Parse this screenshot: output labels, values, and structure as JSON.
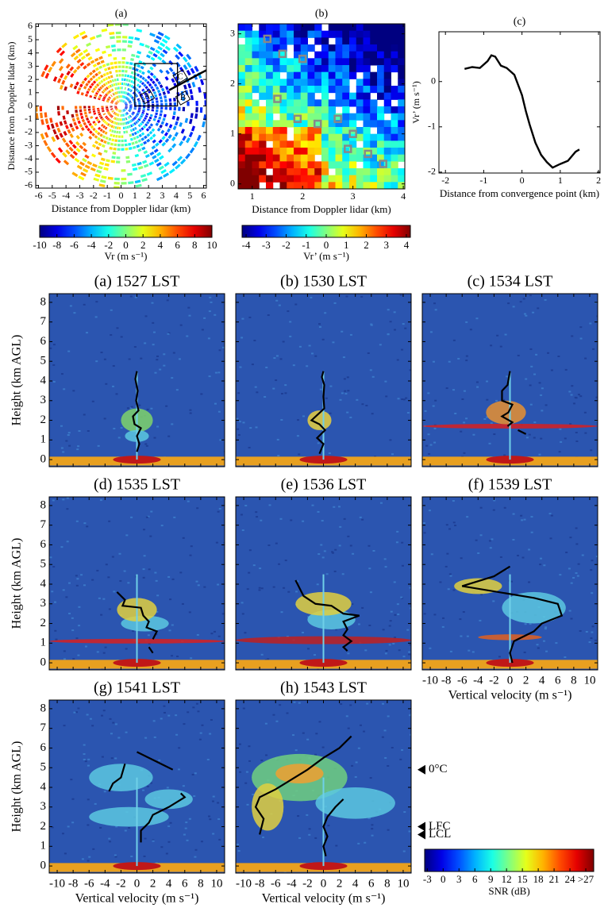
{
  "chart_data": [
    {
      "type": "image",
      "title": "(a)",
      "xlabel": "Distance from Doppler lidar (km)",
      "ylabel": "Distance from Doppler lidar (km)",
      "xlim": [
        -6.2,
        6.2
      ],
      "ylim": [
        -6.2,
        6.2
      ],
      "xticks": [
        -6,
        -5,
        -4,
        -3,
        -2,
        -1,
        0,
        1,
        2,
        3,
        4,
        5,
        6
      ],
      "yticks": [
        -6,
        -5,
        -4,
        -3,
        -2,
        -1,
        0,
        1,
        2,
        3,
        4,
        5,
        6
      ],
      "annotations": [
        "A",
        "B",
        "C"
      ],
      "colorbar": {
        "label": "Vr (m s⁻¹)",
        "lim": [
          -10,
          10
        ],
        "ticks": [
          -10,
          -8,
          -6,
          -4,
          -2,
          0,
          2,
          4,
          6,
          8,
          10
        ]
      }
    },
    {
      "type": "image",
      "title": "(b)",
      "xlabel": "Distance from Doppler lidar (km)",
      "xlim": [
        0.72,
        4.03
      ],
      "ylim": [
        -0.1,
        3.2
      ],
      "xticks": [
        1,
        2,
        3,
        4
      ],
      "yticks": [
        0,
        1,
        2,
        3
      ],
      "colorbar": {
        "label": "Vr’ (m s⁻¹)",
        "lim": [
          -4.2,
          4.2
        ],
        "ticks": [
          -4,
          -3,
          -2,
          -1,
          0,
          1,
          2,
          3,
          4
        ]
      }
    },
    {
      "type": "line",
      "title": "(c)",
      "xlabel": "Distance from convergence point (km)",
      "ylabel": "Vr’ (m s⁻¹)",
      "xlim": [
        -2.17,
        2.04
      ],
      "ylim": [
        -2.02,
        1.1
      ],
      "xticks": [
        -2,
        -1,
        0,
        1,
        2
      ],
      "yticks": [
        -2,
        -1,
        0
      ],
      "color": "#000000",
      "x": [
        -1.5,
        -1.3,
        -1.1,
        -0.9,
        -0.8,
        -0.7,
        -0.55,
        -0.4,
        -0.2,
        0,
        0.1,
        0.2,
        0.35,
        0.5,
        0.65,
        0.8,
        1.0,
        1.2,
        1.4,
        1.5
      ],
      "values": [
        0.28,
        0.32,
        0.3,
        0.45,
        0.58,
        0.55,
        0.35,
        0.3,
        0.15,
        -0.3,
        -0.65,
        -0.95,
        -1.35,
        -1.62,
        -1.78,
        -1.9,
        -1.82,
        -1.75,
        -1.55,
        -1.5
      ]
    },
    {
      "type": "heatmap",
      "title": "(a) 1527 LST",
      "ylabel": "Height (km AGL)",
      "xlim": [
        -11,
        11
      ],
      "ylim": [
        -0.36,
        8.44
      ],
      "xticks": [
        -10,
        -8,
        -6,
        -4,
        -2,
        0,
        2,
        4,
        6,
        8,
        10
      ],
      "yticks": [
        0,
        1,
        2,
        3,
        4,
        5,
        6,
        7,
        8
      ],
      "profile_x": [
        0,
        -0.2,
        0.1,
        -0.1,
        0.2,
        -0.5,
        -0.3,
        0.5,
        0,
        0.3,
        0
      ],
      "profile_y": [
        4.5,
        4.1,
        3.5,
        3.0,
        2.5,
        2.2,
        1.8,
        1.6,
        1.2,
        0.8,
        0.4
      ]
    },
    {
      "type": "heatmap",
      "title": "(b) 1530 LST",
      "xlim": [
        -11,
        11
      ],
      "ylim": [
        -0.36,
        8.44
      ],
      "xticks": [
        -10,
        -8,
        -6,
        -4,
        -2,
        0,
        2,
        4,
        6,
        8,
        10
      ],
      "yticks": [
        0,
        1,
        2,
        3,
        4,
        5,
        6,
        7,
        8
      ],
      "profile_x": [
        0,
        -0.2,
        0.1,
        0,
        0.1,
        -1.5,
        -0.5,
        0.2,
        -0.8,
        0,
        -0.5
      ],
      "profile_y": [
        4.5,
        4.2,
        3.8,
        3.2,
        2.6,
        2.0,
        1.8,
        1.5,
        1.1,
        0.8,
        0.3
      ]
    },
    {
      "type": "heatmap",
      "title": "(c) 1534 LST",
      "xlim": [
        -11,
        11
      ],
      "ylim": [
        -0.36,
        8.44
      ],
      "xticks": [
        -10,
        -8,
        -6,
        -4,
        -2,
        0,
        2,
        4,
        6,
        8,
        10
      ],
      "yticks": [
        0,
        1,
        2,
        3,
        4,
        5,
        6,
        7,
        8
      ],
      "profile_x": [
        0,
        -0.3,
        -1,
        -1,
        0.3,
        -0.2,
        -1,
        0.3,
        -0.3,
        null,
        1,
        2
      ],
      "profile_y": [
        4.5,
        3.8,
        3.5,
        3.0,
        2.8,
        2.4,
        2.2,
        1.9,
        1.7,
        null,
        1.5,
        1.3
      ]
    },
    {
      "type": "heatmap",
      "title": "(d) 1535 LST",
      "ylabel": "Height (km AGL)",
      "xlim": [
        -11,
        11
      ],
      "ylim": [
        -0.36,
        8.44
      ],
      "xticks": [
        -10,
        -8,
        -6,
        -4,
        -2,
        0,
        2,
        4,
        6,
        8,
        10
      ],
      "yticks": [
        0,
        1,
        2,
        3,
        4,
        5,
        6,
        7,
        8
      ],
      "profile_x": [
        -2.5,
        -1.5,
        -1.8,
        0.5,
        0.8,
        1.5,
        1.2,
        2.5,
        2,
        null,
        1.5,
        2
      ],
      "profile_y": [
        3.6,
        3.2,
        2.9,
        2.8,
        2.4,
        2.1,
        1.8,
        1.6,
        1.2,
        null,
        0.8,
        0.5
      ]
    },
    {
      "type": "heatmap",
      "title": "(e) 1536 LST",
      "xlim": [
        -11,
        11
      ],
      "ylim": [
        -0.36,
        8.44
      ],
      "xticks": [
        -10,
        -8,
        -6,
        -4,
        -2,
        0,
        2,
        4,
        6,
        8,
        10
      ],
      "yticks": [
        0,
        1,
        2,
        3,
        4,
        5,
        6,
        7,
        8
      ],
      "profile_x": [
        -3.5,
        -2.5,
        -1,
        1,
        2.5,
        4.5,
        2.5,
        3,
        2.5,
        3.5,
        2.5,
        3
      ],
      "profile_y": [
        4.2,
        3.4,
        3.0,
        2.9,
        2.5,
        2.4,
        2.1,
        1.7,
        1.4,
        1.1,
        0.8,
        0.6
      ]
    },
    {
      "type": "heatmap",
      "title": "(f) 1539 LST",
      "xlabel": "Vertical velocity (m s⁻¹)",
      "xlim": [
        -11,
        11
      ],
      "ylim": [
        -0.36,
        8.44
      ],
      "xticks": [
        -10,
        -8,
        -6,
        -4,
        -2,
        0,
        2,
        4,
        6,
        8,
        10
      ],
      "yticks": [
        0,
        1,
        2,
        3,
        4,
        5,
        6,
        7,
        8
      ],
      "profile_x": [
        0,
        -2,
        -6,
        0,
        3,
        6,
        6.5,
        4,
        3,
        0.5,
        0,
        0.3
      ],
      "profile_y": [
        4.9,
        4.4,
        3.9,
        3.5,
        3.3,
        3.0,
        2.4,
        2.0,
        1.6,
        1.1,
        0.5,
        0
      ]
    },
    {
      "type": "heatmap",
      "title": "(g) 1541 LST",
      "ylabel": "Height (km AGL)",
      "xlabel": "Vertical velocity (m s⁻¹)",
      "xlim": [
        -11,
        11
      ],
      "ylim": [
        -0.36,
        8.44
      ],
      "xticks": [
        -10,
        -8,
        -6,
        -4,
        -2,
        0,
        2,
        4,
        6,
        8,
        10
      ],
      "yticks": [
        0,
        1,
        2,
        3,
        4,
        5,
        6,
        7,
        8
      ],
      "profile_x": [
        0,
        3.5,
        4.5,
        null,
        -1.5,
        -2,
        -3,
        -3.5,
        null,
        5.5,
        6,
        4,
        2,
        1.5,
        0.5,
        0.5
      ],
      "profile_y": [
        5.8,
        5.1,
        4.9,
        null,
        5.2,
        4.5,
        4.2,
        3.8,
        null,
        3.7,
        3.5,
        3.0,
        2.6,
        2.2,
        1.8,
        1.2
      ]
    },
    {
      "type": "heatmap",
      "title": "(h) 1543 LST",
      "xlabel": "Vertical velocity (m s⁻¹)",
      "xlim": [
        -11,
        11
      ],
      "ylim": [
        -0.36,
        8.44
      ],
      "xticks": [
        -10,
        -8,
        -6,
        -4,
        -2,
        0,
        2,
        4,
        6,
        8,
        10
      ],
      "yticks": [
        0,
        1,
        2,
        3,
        4,
        5,
        6,
        7,
        8
      ],
      "profile_x": [
        3.5,
        2,
        0,
        -2,
        -4,
        -6,
        -8,
        -8.5,
        -7.5,
        -8,
        null,
        2.5,
        1.5,
        0.5,
        0,
        0.5,
        0,
        0.3
      ],
      "profile_y": [
        6.6,
        6.0,
        5.5,
        4.9,
        4.4,
        3.9,
        3.5,
        3.0,
        2.4,
        1.6,
        null,
        3.4,
        3.0,
        2.5,
        2.0,
        1.5,
        1.0,
        0.5
      ],
      "markers": [
        {
          "label": "0°C",
          "value": 4.9
        },
        {
          "label": "LFC",
          "value": 2.0
        },
        {
          "label": "LCL",
          "value": 1.6
        }
      ]
    },
    {
      "type": "colorbar",
      "label": "SNR (dB)",
      "lim": [
        -3.5,
        28.5
      ],
      "ticks": [
        -3,
        0,
        3,
        6,
        9,
        12,
        15,
        18,
        21,
        24,
        {
          "value": 27,
          "label": ">27"
        }
      ]
    }
  ]
}
